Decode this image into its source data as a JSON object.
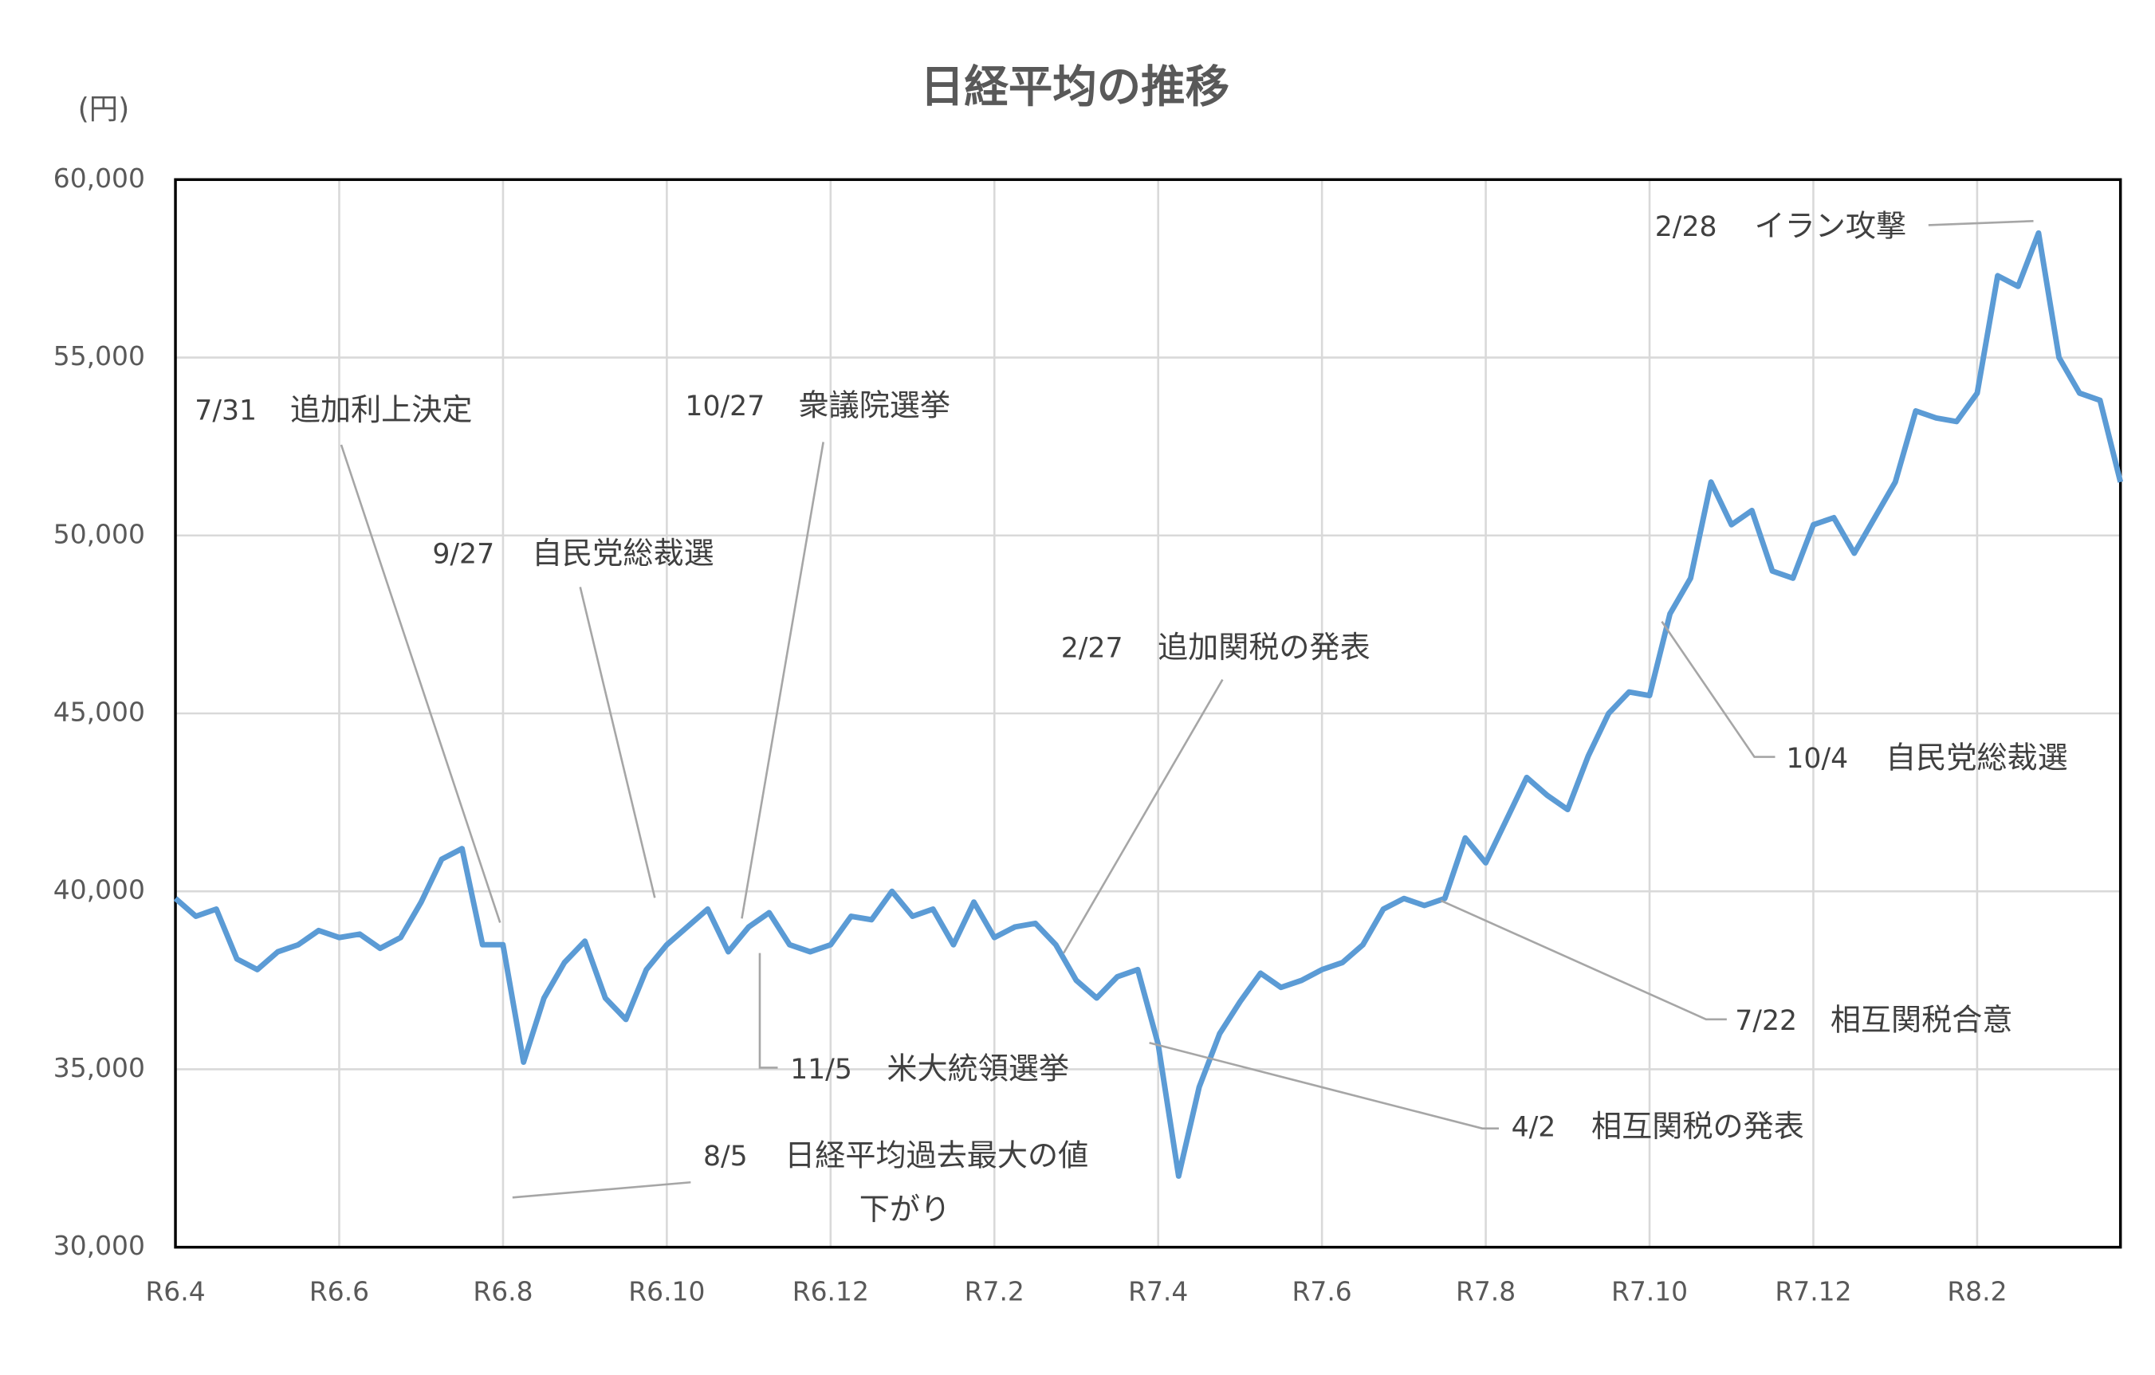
{
  "chart_data": {
    "type": "line",
    "title": "日経平均の推移",
    "y_unit_label": "(円)",
    "categories": [
      "R6.4",
      null,
      null,
      null,
      null,
      null,
      null,
      null,
      "R6.6",
      null,
      null,
      null,
      null,
      null,
      null,
      null,
      "R6.8",
      null,
      null,
      null,
      null,
      null,
      null,
      null,
      "R6.10",
      null,
      null,
      null,
      null,
      null,
      null,
      null,
      "R6.12",
      null,
      null,
      null,
      null,
      null,
      null,
      null,
      "R7.2",
      null,
      null,
      null,
      null,
      null,
      null,
      null,
      "R7.4",
      null,
      null,
      null,
      null,
      null,
      null,
      null,
      "R7.6",
      null,
      null,
      null,
      null,
      null,
      null,
      null,
      "R7.8",
      null,
      null,
      null,
      null,
      null,
      null,
      null,
      "R7.10",
      null,
      null,
      null,
      null,
      null,
      null,
      null,
      "R7.12",
      null,
      null,
      null,
      null,
      null,
      null,
      null,
      "R8.2",
      null,
      null,
      null,
      null,
      null,
      null,
      null
    ],
    "values": [
      39800,
      39300,
      39500,
      38100,
      37800,
      38300,
      38500,
      38900,
      38700,
      38800,
      38400,
      38700,
      39700,
      40900,
      41200,
      38500,
      38500,
      35200,
      37000,
      38000,
      38600,
      37000,
      36400,
      37800,
      38500,
      39000,
      39500,
      38300,
      39000,
      39400,
      38500,
      38300,
      38500,
      39300,
      39200,
      40000,
      39300,
      39500,
      38500,
      39700,
      38700,
      39000,
      39100,
      38500,
      37500,
      37000,
      37600,
      37800,
      35700,
      32000,
      34500,
      36000,
      36900,
      37700,
      37300,
      37500,
      37800,
      38000,
      38500,
      39500,
      39800,
      39600,
      39800,
      41500,
      40800,
      42000,
      43200,
      42700,
      42300,
      43800,
      45000,
      45600,
      45500,
      47800,
      48800,
      51500,
      50300,
      50700,
      49000,
      48800,
      50300,
      50500,
      49500,
      50500,
      51500,
      53500,
      53300,
      53200,
      54000,
      57300,
      57000,
      58500,
      55000,
      54000,
      53800,
      51500
    ],
    "color": "#5b9bd5",
    "ylim": [
      30000,
      60000
    ],
    "yticks": [
      {
        "value": 30000,
        "label": "30,000"
      },
      {
        "value": 35000,
        "label": "35,000"
      },
      {
        "value": 40000,
        "label": "40,000"
      },
      {
        "value": 45000,
        "label": "45,000"
      },
      {
        "value": 50000,
        "label": "50,000"
      },
      {
        "value": 55000,
        "label": "55,000"
      },
      {
        "value": 60000,
        "label": "60,000"
      }
    ],
    "grid": true,
    "annotations": [
      {
        "date": "7/31",
        "lines": [
          "追加利上決定"
        ]
      },
      {
        "date": "9/27",
        "lines": [
          "自民党総裁選"
        ]
      },
      {
        "date": "10/27",
        "lines": [
          "衆議院選挙"
        ]
      },
      {
        "date": "11/5",
        "lines": [
          "米大統領選挙"
        ]
      },
      {
        "date": "8/5",
        "lines": [
          "日経平均過去最大の値",
          "下がり"
        ]
      },
      {
        "date": "2/27",
        "lines": [
          "追加関税の発表"
        ]
      },
      {
        "date": "4/2",
        "lines": [
          "相互関税の発表"
        ]
      },
      {
        "date": "7/22",
        "lines": [
          "相互関税合意"
        ]
      },
      {
        "date": "10/4",
        "lines": [
          "自民党総裁選"
        ]
      },
      {
        "date": "2/28",
        "lines": [
          "イラン攻撃"
        ]
      }
    ]
  }
}
